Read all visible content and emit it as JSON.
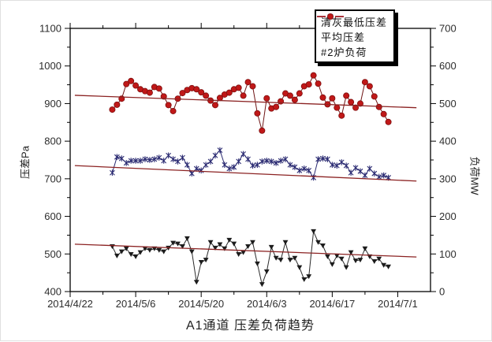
{
  "chart_data": {
    "type": "line",
    "title": "A1通道 压差负荷趋势",
    "left_axis": {
      "label": "压差Pa",
      "min": 400,
      "max": 1100,
      "major_step": 100,
      "minor_step": 50
    },
    "right_axis": {
      "label": "负荷MW",
      "min": 0,
      "max": 700,
      "major_step": 100,
      "minor_step": 50
    },
    "x_axis": {
      "start_date": "2014/4/22",
      "tick_labels": [
        "2014/4/22",
        "2014/5/6",
        "2014/5/20",
        "2014/6/3",
        "2014/6/17",
        "2014/7/1"
      ],
      "major_step_days": 14,
      "minor_step_days": 7,
      "domain_days": [
        0,
        77
      ]
    },
    "legend": {
      "position": "top-right"
    },
    "series": [
      {
        "name": "清灰最低压差",
        "axis": "left",
        "marker": "triangle-down",
        "color": "#1c1c1c",
        "line_color": "#2a2a2a",
        "start_day": 9,
        "values": [
          520,
          495,
          506,
          514,
          499,
          493,
          504,
          514,
          510,
          514,
          510,
          506,
          516,
          529,
          527,
          520,
          541,
          506,
          425,
          478,
          484,
          531,
          516,
          525,
          514,
          537,
          527,
          499,
          504,
          520,
          531,
          474,
          419,
          453,
          518,
          489,
          484,
          531,
          484,
          489,
          464,
          432,
          440,
          560,
          531,
          522,
          493,
          472,
          495,
          487,
          464,
          504,
          482,
          484,
          514,
          493,
          480,
          487,
          470,
          466
        ]
      },
      {
        "name": "平均压差",
        "axis": "left",
        "marker": "x",
        "color": "#2b2b72",
        "line_color": "#2b2b72",
        "start_day": 9,
        "values": [
          716,
          758,
          754,
          742,
          748,
          748,
          748,
          752,
          750,
          752,
          756,
          748,
          762,
          752,
          746,
          756,
          737,
          714,
          727,
          722,
          737,
          746,
          762,
          776,
          737,
          727,
          731,
          746,
          766,
          752,
          735,
          737,
          746,
          748,
          746,
          742,
          748,
          752,
          737,
          731,
          722,
          727,
          722,
          703,
          752,
          754,
          752,
          737,
          735,
          744,
          735,
          716,
          729,
          720,
          709,
          727,
          714,
          705,
          709,
          703
        ]
      },
      {
        "name": "#2炉负荷",
        "axis": "right",
        "marker": "circle",
        "color": "#c01818",
        "line_color": "#6e1414",
        "start_day": 9,
        "values": [
          484,
          497,
          513,
          552,
          560,
          548,
          538,
          533,
          529,
          544,
          540,
          519,
          496,
          480,
          513,
          528,
          536,
          541,
          538,
          530,
          521,
          508,
          496,
          515,
          524,
          529,
          538,
          542,
          521,
          557,
          546,
          474,
          428,
          514,
          487,
          491,
          506,
          527,
          521,
          510,
          527,
          546,
          551,
          575,
          553,
          516,
          498,
          514,
          489,
          468,
          521,
          504,
          489,
          500,
          557,
          546,
          519,
          491,
          472,
          451
        ]
      }
    ],
    "trend_lines": [
      {
        "series": "清灰最低压差",
        "axis": "left",
        "x_days": [
          1,
          74
        ],
        "from": 526,
        "to": 492,
        "color": "#8b2222"
      },
      {
        "series": "平均压差",
        "axis": "left",
        "x_days": [
          1,
          74
        ],
        "from": 735,
        "to": 694,
        "color": "#8b2222"
      },
      {
        "series": "#2炉负荷",
        "axis": "right",
        "x_days": [
          1,
          74
        ],
        "from": 522,
        "to": 489,
        "color": "#8b2222"
      }
    ],
    "style": {
      "frame_color": "#000000",
      "tick_label_color": "#2d2d2d",
      "background": "#ffffff"
    }
  }
}
